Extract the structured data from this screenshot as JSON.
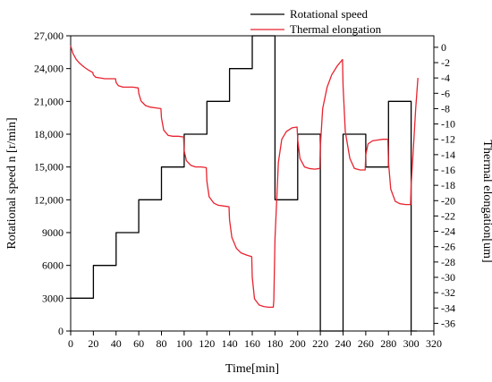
{
  "chart_data": {
    "type": "line",
    "title": "",
    "xlabel": "Time[min]",
    "ylabel": "Rotational speed n [r/min]",
    "y2label": "Thermal elongation[um]",
    "xlim": [
      0,
      320
    ],
    "ylim": [
      0,
      27000
    ],
    "y2lim": [
      -37,
      1.5
    ],
    "x_ticks": [
      0,
      20,
      40,
      60,
      80,
      100,
      120,
      140,
      160,
      180,
      200,
      220,
      240,
      260,
      280,
      300,
      320
    ],
    "y_ticks": [
      0,
      3000,
      6000,
      9000,
      12000,
      15000,
      18000,
      21000,
      24000,
      27000
    ],
    "y_tick_labels": [
      "0",
      "3000",
      "6000",
      "9000",
      "12,000",
      "15,000",
      "18,000",
      "21,000",
      "24,000",
      "27,000"
    ],
    "y2_ticks": [
      0,
      -2,
      -4,
      -6,
      -8,
      -10,
      -12,
      -14,
      -16,
      -18,
      -20,
      -22,
      -24,
      -26,
      -28,
      -30,
      -32,
      -34,
      -36
    ],
    "legend_position": "top-right",
    "grid": false,
    "series": [
      {
        "name": "Rotational speed",
        "axis": "left",
        "color": "#000000",
        "step": true,
        "x": [
          0,
          20,
          20,
          40,
          40,
          60,
          60,
          80,
          80,
          100,
          100,
          120,
          120,
          140,
          140,
          160,
          160,
          180,
          180,
          200,
          200,
          220,
          220,
          240,
          240,
          260,
          260,
          280,
          280,
          300,
          300,
          305
        ],
        "y": [
          3000,
          3000,
          6000,
          6000,
          9000,
          9000,
          12000,
          12000,
          15000,
          15000,
          18000,
          18000,
          21000,
          21000,
          24000,
          24000,
          27000,
          27000,
          12000,
          12000,
          18000,
          18000,
          0,
          0,
          18000,
          18000,
          15000,
          15000,
          21000,
          21000,
          0,
          0
        ]
      },
      {
        "name": "Thermal elongation",
        "axis": "right",
        "color": "#e8232f",
        "step": false,
        "x": [
          0,
          2,
          5,
          8,
          12,
          16,
          19.5,
          20,
          22,
          26,
          30,
          35,
          39.5,
          40,
          42,
          46,
          50,
          55,
          59.5,
          60,
          62,
          66,
          70,
          75,
          79.5,
          80,
          82,
          86,
          90,
          95,
          99.5,
          100,
          102,
          106,
          110,
          115,
          119.5,
          120,
          122,
          126,
          130,
          135,
          139.5,
          140,
          142,
          146,
          150,
          155,
          159.5,
          160,
          162,
          166,
          170,
          174,
          178.5,
          179,
          180,
          183,
          186,
          190,
          195,
          199.5,
          200,
          202,
          206,
          210,
          215,
          219.5,
          220,
          222,
          226,
          230,
          235,
          239.5,
          240,
          242,
          246,
          250,
          255,
          259.5,
          260,
          262,
          266,
          270,
          275,
          279.5,
          280,
          282,
          286,
          290,
          295,
          299.5,
          300,
          302,
          304,
          306
        ],
        "y": [
          0.2,
          -0.8,
          -1.6,
          -2.1,
          -2.6,
          -3.0,
          -3.3,
          -3.6,
          -3.9,
          -4.0,
          -4.1,
          -4.1,
          -4.1,
          -4.6,
          -5.0,
          -5.2,
          -5.2,
          -5.2,
          -5.3,
          -6.0,
          -7.0,
          -7.6,
          -7.8,
          -7.9,
          -8.0,
          -9.2,
          -10.8,
          -11.5,
          -11.6,
          -11.6,
          -11.7,
          -13.5,
          -14.8,
          -15.4,
          -15.6,
          -15.6,
          -15.7,
          -17.5,
          -19.5,
          -20.3,
          -20.6,
          -20.7,
          -20.8,
          -22.5,
          -24.8,
          -26.2,
          -26.8,
          -27.1,
          -27.3,
          -30.0,
          -32.8,
          -33.6,
          -33.8,
          -33.9,
          -33.9,
          -33.0,
          -25.0,
          -15.0,
          -12.0,
          -11.0,
          -10.5,
          -10.4,
          -12.0,
          -14.5,
          -15.6,
          -15.8,
          -15.9,
          -15.8,
          -13.0,
          -8.0,
          -5.2,
          -3.6,
          -2.4,
          -1.6,
          -5.0,
          -11.0,
          -14.5,
          -15.8,
          -16.0,
          -16.0,
          -14.0,
          -12.6,
          -12.2,
          -12.1,
          -12.0,
          -12.0,
          -15.0,
          -18.5,
          -20.1,
          -20.4,
          -20.5,
          -20.5,
          -18.0,
          -13.0,
          -8.0,
          -4.0
        ]
      }
    ]
  }
}
